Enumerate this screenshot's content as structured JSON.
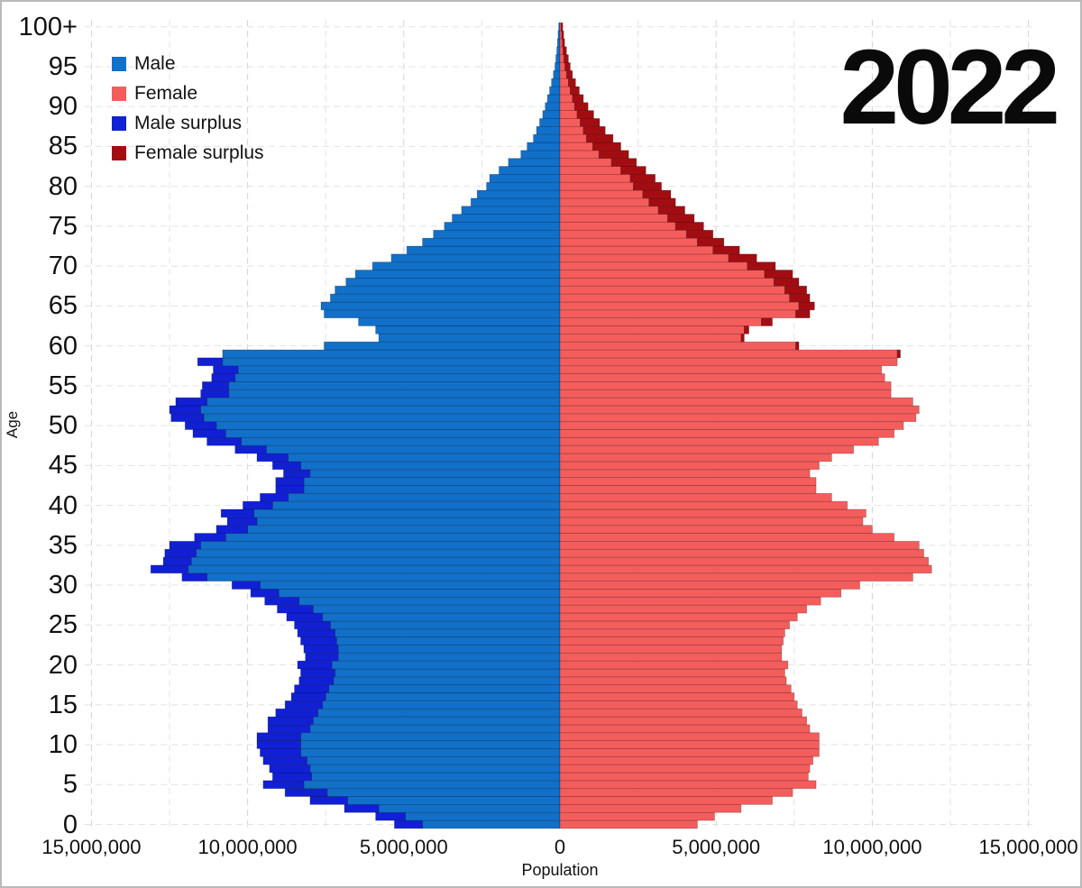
{
  "title": "2022",
  "colors": {
    "male": "#1170c9",
    "female": "#f45d5c",
    "male_surplus": "#1120d5",
    "female_surplus": "#a30d11",
    "grid_major": "#d4d4d4",
    "grid_minor": "#e3e3e3",
    "text": "#111111"
  },
  "legend": {
    "items": [
      {
        "label": "Male",
        "color_key": "male"
      },
      {
        "label": "Female",
        "color_key": "female"
      },
      {
        "label": "Male surplus",
        "color_key": "male_surplus"
      },
      {
        "label": "Female surplus",
        "color_key": "female_surplus"
      }
    ]
  },
  "axes": {
    "x_label": "Population",
    "y_label": "Age",
    "x_ticks": [
      {
        "millions": -15,
        "label": "15,000,000"
      },
      {
        "millions": -10,
        "label": "10,000,000"
      },
      {
        "millions": -5,
        "label": "5,000,000"
      },
      {
        "millions": 0,
        "label": "0"
      },
      {
        "millions": 5,
        "label": "5,000,000"
      },
      {
        "millions": 10,
        "label": "10,000,000"
      },
      {
        "millions": 15,
        "label": "15,000,000"
      }
    ],
    "y_ticks": [
      {
        "age": 0,
        "label": "0"
      },
      {
        "age": 5,
        "label": "5"
      },
      {
        "age": 10,
        "label": "10"
      },
      {
        "age": 15,
        "label": "15"
      },
      {
        "age": 20,
        "label": "20"
      },
      {
        "age": 25,
        "label": "25"
      },
      {
        "age": 30,
        "label": "30"
      },
      {
        "age": 35,
        "label": "35"
      },
      {
        "age": 40,
        "label": "40"
      },
      {
        "age": 45,
        "label": "45"
      },
      {
        "age": 50,
        "label": "50"
      },
      {
        "age": 55,
        "label": "55"
      },
      {
        "age": 60,
        "label": "60"
      },
      {
        "age": 65,
        "label": "65"
      },
      {
        "age": 70,
        "label": "70"
      },
      {
        "age": 75,
        "label": "75"
      },
      {
        "age": 80,
        "label": "80"
      },
      {
        "age": 85,
        "label": "85"
      },
      {
        "age": 90,
        "label": "90"
      },
      {
        "age": 95,
        "label": "95"
      },
      {
        "age": 100,
        "label": "100+"
      }
    ],
    "x_range_millions": [
      -15,
      15
    ],
    "grid": "dashed"
  },
  "chart_data": {
    "type": "bar",
    "subtype": "population-pyramid",
    "year": "2022",
    "units": "millions of people per single year of age",
    "age_start": 0,
    "age_end": 100,
    "top_age_label": "100+",
    "surplus_convention": "lighter color drawn to min(male,female); darker tip shows the surplus sex for that age",
    "series": [
      {
        "name": "Male",
        "side": "left",
        "values_millions": [
          5.3,
          5.9,
          6.9,
          8.0,
          8.8,
          9.5,
          9.2,
          9.3,
          9.5,
          9.6,
          9.7,
          9.7,
          9.35,
          9.35,
          9.1,
          8.8,
          8.6,
          8.5,
          8.35,
          8.3,
          8.4,
          8.15,
          8.2,
          8.3,
          8.4,
          8.5,
          8.75,
          9.05,
          9.45,
          9.9,
          10.5,
          12.1,
          13.1,
          12.7,
          12.65,
          12.5,
          11.7,
          11.0,
          10.65,
          10.85,
          10.15,
          9.6,
          9.1,
          9.1,
          8.85,
          9.2,
          9.7,
          10.4,
          11.3,
          11.75,
          12.0,
          12.45,
          12.5,
          12.3,
          11.5,
          11.45,
          11.15,
          11.1,
          11.6,
          10.8,
          7.55,
          5.8,
          5.9,
          6.45,
          7.55,
          7.65,
          7.35,
          7.2,
          6.85,
          6.55,
          6.0,
          5.4,
          4.9,
          4.4,
          4.05,
          3.7,
          3.45,
          3.15,
          2.85,
          2.65,
          2.35,
          2.25,
          1.95,
          1.65,
          1.25,
          1.05,
          0.85,
          0.75,
          0.65,
          0.55,
          0.47,
          0.4,
          0.33,
          0.27,
          0.21,
          0.16,
          0.13,
          0.1,
          0.08,
          0.06,
          0.04
        ]
      },
      {
        "name": "Female",
        "side": "right",
        "values_millions": [
          4.4,
          4.95,
          5.8,
          6.8,
          7.45,
          8.2,
          7.95,
          8.0,
          8.1,
          8.3,
          8.3,
          8.3,
          8.0,
          7.9,
          7.75,
          7.6,
          7.5,
          7.4,
          7.25,
          7.2,
          7.3,
          7.1,
          7.1,
          7.15,
          7.2,
          7.35,
          7.6,
          7.9,
          8.35,
          9.0,
          9.6,
          11.3,
          11.9,
          11.8,
          11.65,
          11.5,
          10.7,
          10.0,
          9.7,
          9.8,
          9.2,
          8.7,
          8.2,
          8.2,
          8.0,
          8.3,
          8.7,
          9.4,
          10.2,
          10.7,
          11.0,
          11.4,
          11.5,
          11.3,
          10.6,
          10.6,
          10.4,
          10.3,
          10.8,
          10.9,
          7.65,
          5.9,
          6.05,
          6.8,
          8.0,
          8.15,
          8.0,
          7.9,
          7.65,
          7.45,
          6.9,
          6.3,
          5.75,
          5.25,
          4.9,
          4.6,
          4.3,
          4.0,
          3.7,
          3.55,
          3.25,
          3.05,
          2.75,
          2.45,
          2.2,
          1.95,
          1.7,
          1.45,
          1.27,
          1.08,
          0.9,
          0.75,
          0.62,
          0.5,
          0.4,
          0.33,
          0.27,
          0.21,
          0.15,
          0.12,
          0.09
        ]
      }
    ]
  }
}
